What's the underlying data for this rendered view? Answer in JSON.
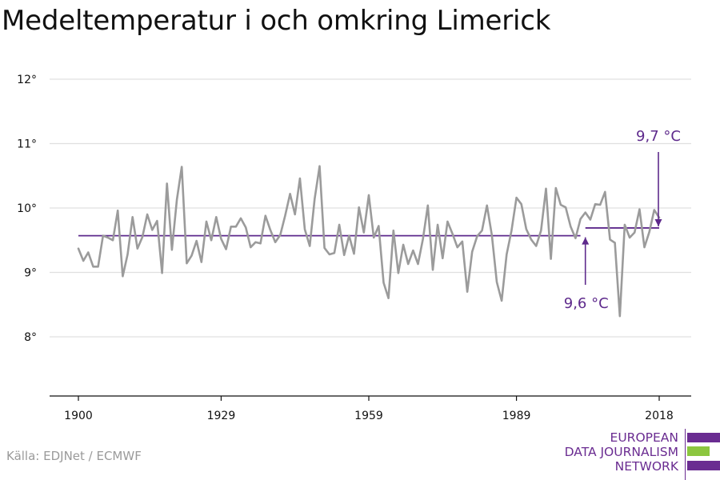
{
  "title": "Medeltemperatur i och omkring Limerick",
  "source": "Källa: EDJNet / ECMWF",
  "logo": {
    "line1": "EUROPEAN",
    "line2": "DATA JOURNALISM",
    "line3": "NETWORK"
  },
  "colors": {
    "series": "#9b9b9b",
    "average": "#5e2a8c",
    "grid": "#e0e0e0",
    "axis": "#111111",
    "logo_purple": "#6a2c91",
    "logo_green": "#8cc63f"
  },
  "chart_data": {
    "type": "line",
    "title": "Medeltemperatur i och omkring Limerick",
    "xlabel": "",
    "ylabel": "",
    "xlim": [
      1896,
      2022
    ],
    "ylim": [
      7.1,
      12.4
    ],
    "x_ticks": [
      1900,
      1929,
      1959,
      1989,
      2018
    ],
    "y_ticks": [
      {
        "value": 8,
        "label": "8°"
      },
      {
        "value": 9,
        "label": "9°"
      },
      {
        "value": 10,
        "label": "10°"
      },
      {
        "value": 11,
        "label": "11°"
      },
      {
        "value": 12,
        "label": "12°"
      }
    ],
    "grid": true,
    "series": [
      {
        "x_start": 1900,
        "values": [
          9.37,
          9.18,
          9.31,
          9.09,
          9.09,
          9.57,
          9.54,
          9.5,
          9.96,
          8.94,
          9.28,
          9.86,
          9.37,
          9.55,
          9.9,
          9.66,
          9.8,
          8.99,
          10.38,
          9.35,
          10.13,
          10.64,
          9.14,
          9.26,
          9.49,
          9.16,
          9.79,
          9.5,
          9.86,
          9.52,
          9.36,
          9.71,
          9.71,
          9.84,
          9.7,
          9.39,
          9.47,
          9.45,
          9.88,
          9.66,
          9.47,
          9.58,
          9.88,
          10.22,
          9.9,
          10.46,
          9.67,
          9.41,
          10.14,
          10.65,
          9.38,
          9.28,
          9.3,
          9.74,
          9.27,
          9.57,
          9.29,
          10.01,
          9.62,
          10.2,
          9.54,
          9.72,
          8.84,
          8.6,
          9.65,
          8.99,
          9.43,
          9.13,
          9.34,
          9.13,
          9.52,
          10.04,
          9.04,
          9.74,
          9.22,
          9.79,
          9.6,
          9.39,
          9.48,
          8.7,
          9.32,
          9.56,
          9.65,
          10.04,
          9.58,
          8.85,
          8.56,
          9.28,
          9.65,
          10.16,
          10.06,
          9.67,
          9.51,
          9.41,
          9.65,
          10.3,
          9.21,
          10.31,
          10.05,
          10.01,
          9.71,
          9.53,
          9.83,
          9.93,
          9.82,
          10.06,
          10.05,
          10.25,
          9.51,
          9.46,
          8.32,
          9.74,
          9.54,
          9.62,
          9.98,
          9.39,
          9.63,
          9.97,
          9.85
        ]
      }
    ],
    "averages": [
      {
        "label": "9,6 °C",
        "value": 9.57,
        "x_start": 1900,
        "x_end": 2002
      },
      {
        "label": "9,7 °C",
        "value": 9.69,
        "x_start": 2003,
        "x_end": 2018
      }
    ]
  }
}
